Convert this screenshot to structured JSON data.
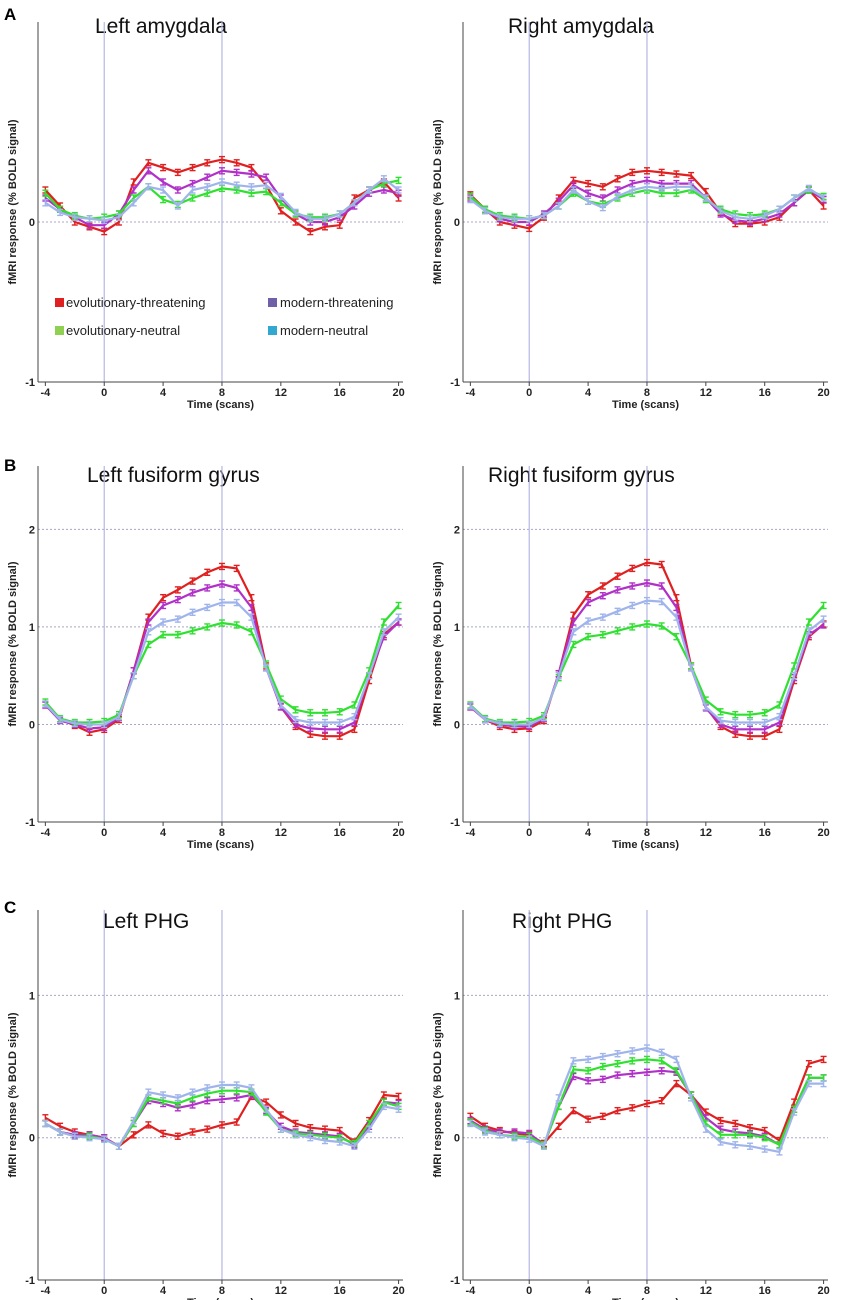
{
  "figure": {
    "rows": [
      {
        "letter": "A"
      },
      {
        "letter": "B"
      },
      {
        "letter": "C"
      }
    ]
  },
  "legend": {
    "items": [
      {
        "name": "evolutionary-threatening",
        "color": "#e02020"
      },
      {
        "name": "modern-threatening",
        "color": "#7060a8"
      },
      {
        "name": "evolutionary-neutral",
        "color": "#90d050"
      },
      {
        "name": "modern-neutral",
        "color": "#30a8d0"
      }
    ]
  },
  "chart_data": [
    {
      "type": "line",
      "title": "Left amygdala",
      "xlabel": "Time (scans)",
      "ylabel": "fMRI response (% BOLD signal)",
      "xlim": [
        -4.5,
        20.3
      ],
      "ylim": [
        -1,
        1.25
      ],
      "yticks": [
        -1,
        0
      ],
      "xticks": [
        -4,
        0,
        4,
        8,
        12,
        16,
        20
      ],
      "vlines": [
        0,
        8
      ],
      "hgrid": [
        0
      ],
      "x": [
        -4,
        -3,
        -2,
        -1,
        0,
        1,
        2,
        3,
        4,
        5,
        6,
        7,
        8,
        9,
        10,
        11,
        12,
        13,
        14,
        15,
        16,
        17,
        18,
        19,
        20
      ],
      "series": [
        {
          "name": "evolutionary-threatening",
          "color": "#e02020",
          "values": [
            0.2,
            0.1,
            0.0,
            -0.03,
            -0.06,
            0.0,
            0.25,
            0.37,
            0.34,
            0.31,
            0.34,
            0.37,
            0.39,
            0.37,
            0.34,
            0.23,
            0.07,
            0.0,
            -0.06,
            -0.03,
            -0.02,
            0.15,
            0.2,
            0.25,
            0.15
          ]
        },
        {
          "name": "modern-threatening",
          "color": "#b030c8",
          "values": [
            0.15,
            0.08,
            0.03,
            -0.02,
            -0.02,
            0.05,
            0.2,
            0.32,
            0.25,
            0.2,
            0.24,
            0.28,
            0.32,
            0.31,
            0.3,
            0.28,
            0.15,
            0.05,
            0.0,
            0.0,
            0.03,
            0.1,
            0.18,
            0.2,
            0.18
          ]
        },
        {
          "name": "evolutionary-neutral",
          "color": "#30e030",
          "values": [
            0.18,
            0.08,
            0.04,
            0.02,
            0.03,
            0.05,
            0.15,
            0.22,
            0.14,
            0.11,
            0.15,
            0.18,
            0.21,
            0.2,
            0.18,
            0.19,
            0.12,
            0.05,
            0.03,
            0.03,
            0.05,
            0.12,
            0.2,
            0.24,
            0.26
          ]
        },
        {
          "name": "modern-neutral",
          "color": "#a0b4ec",
          "values": [
            0.12,
            0.06,
            0.03,
            0.02,
            0.01,
            0.03,
            0.12,
            0.22,
            0.2,
            0.1,
            0.2,
            0.22,
            0.25,
            0.23,
            0.22,
            0.23,
            0.16,
            0.06,
            0.02,
            0.02,
            0.05,
            0.12,
            0.2,
            0.27,
            0.2
          ]
        }
      ]
    },
    {
      "type": "line",
      "title": "Right amygdala",
      "xlabel": "Time (scans)",
      "ylabel": "fMRI response (% BOLD signal)",
      "xlim": [
        -4.5,
        20.3
      ],
      "ylim": [
        -1,
        1.25
      ],
      "yticks": [
        -1,
        0
      ],
      "xticks": [
        -4,
        0,
        4,
        8,
        12,
        16,
        20
      ],
      "vlines": [
        0,
        8
      ],
      "hgrid": [
        0
      ],
      "x": [
        -4,
        -3,
        -2,
        -1,
        0,
        1,
        2,
        3,
        4,
        5,
        6,
        7,
        8,
        9,
        10,
        11,
        12,
        13,
        14,
        15,
        16,
        17,
        18,
        19,
        20
      ],
      "series": [
        {
          "name": "evolutionary-threatening",
          "color": "#e02020",
          "values": [
            0.17,
            0.08,
            0.0,
            -0.02,
            -0.04,
            0.03,
            0.15,
            0.26,
            0.24,
            0.22,
            0.27,
            0.31,
            0.32,
            0.31,
            0.3,
            0.29,
            0.19,
            0.06,
            -0.01,
            -0.01,
            0.0,
            0.03,
            0.12,
            0.2,
            0.1
          ]
        },
        {
          "name": "modern-threatening",
          "color": "#b030c8",
          "values": [
            0.15,
            0.07,
            0.02,
            0.0,
            0.0,
            0.05,
            0.13,
            0.23,
            0.18,
            0.15,
            0.2,
            0.24,
            0.26,
            0.24,
            0.24,
            0.24,
            0.15,
            0.05,
            0.01,
            0.0,
            0.02,
            0.05,
            0.12,
            0.2,
            0.14
          ]
        },
        {
          "name": "evolutionary-neutral",
          "color": "#30e030",
          "values": [
            0.16,
            0.08,
            0.04,
            0.03,
            0.02,
            0.04,
            0.1,
            0.18,
            0.13,
            0.11,
            0.15,
            0.18,
            0.2,
            0.18,
            0.18,
            0.2,
            0.14,
            0.08,
            0.05,
            0.04,
            0.05,
            0.08,
            0.15,
            0.2,
            0.16
          ]
        },
        {
          "name": "modern-neutral",
          "color": "#a0b4ec",
          "values": [
            0.14,
            0.07,
            0.03,
            0.02,
            0.02,
            0.04,
            0.1,
            0.2,
            0.13,
            0.09,
            0.16,
            0.2,
            0.22,
            0.21,
            0.22,
            0.22,
            0.15,
            0.07,
            0.03,
            0.02,
            0.04,
            0.08,
            0.15,
            0.21,
            0.15
          ]
        }
      ]
    },
    {
      "type": "line",
      "title": "Left fusiform gyrus",
      "xlabel": "Time (scans)",
      "ylabel": "fMRI response (% BOLD signal)",
      "xlim": [
        -4.5,
        20.3
      ],
      "ylim": [
        -1,
        2.65
      ],
      "yticks": [
        -1,
        0,
        1,
        2
      ],
      "xticks": [
        -4,
        0,
        4,
        8,
        12,
        16,
        20
      ],
      "vlines": [
        0,
        8
      ],
      "hgrid": [
        0,
        1,
        2
      ],
      "x": [
        -4,
        -3,
        -2,
        -1,
        0,
        1,
        2,
        3,
        4,
        5,
        6,
        7,
        8,
        9,
        10,
        11,
        12,
        13,
        14,
        15,
        16,
        17,
        18,
        19,
        20
      ],
      "series": [
        {
          "name": "evolutionary-threatening",
          "color": "#e02020",
          "values": [
            0.2,
            0.05,
            -0.01,
            -0.08,
            -0.05,
            0.05,
            0.55,
            1.1,
            1.3,
            1.38,
            1.47,
            1.56,
            1.62,
            1.6,
            1.3,
            0.6,
            0.18,
            -0.02,
            -0.1,
            -0.12,
            -0.12,
            -0.05,
            0.45,
            0.92,
            1.05
          ]
        },
        {
          "name": "modern-threatening",
          "color": "#b030c8",
          "values": [
            0.2,
            0.04,
            0.0,
            -0.04,
            -0.03,
            0.07,
            0.55,
            1.05,
            1.22,
            1.28,
            1.35,
            1.4,
            1.44,
            1.4,
            1.2,
            0.58,
            0.18,
            0.0,
            -0.04,
            -0.05,
            -0.05,
            0.02,
            0.5,
            0.9,
            1.05
          ]
        },
        {
          "name": "evolutionary-neutral",
          "color": "#30e030",
          "values": [
            0.23,
            0.06,
            0.02,
            0.02,
            0.03,
            0.1,
            0.5,
            0.82,
            0.92,
            0.92,
            0.96,
            1.0,
            1.04,
            1.02,
            0.95,
            0.62,
            0.26,
            0.15,
            0.12,
            0.12,
            0.13,
            0.2,
            0.55,
            1.05,
            1.22
          ]
        },
        {
          "name": "modern-neutral",
          "color": "#a0b4ec",
          "values": [
            0.21,
            0.05,
            0.01,
            0.0,
            0.0,
            0.08,
            0.5,
            0.95,
            1.05,
            1.08,
            1.15,
            1.2,
            1.25,
            1.25,
            1.1,
            0.58,
            0.2,
            0.05,
            0.02,
            0.02,
            0.02,
            0.08,
            0.5,
            0.95,
            1.1
          ]
        }
      ]
    },
    {
      "type": "line",
      "title": "Right fusiform gyrus",
      "xlabel": "Time (scans)",
      "ylabel": "fMRI response (% BOLD signal)",
      "xlim": [
        -4.5,
        20.3
      ],
      "ylim": [
        -1,
        2.65
      ],
      "yticks": [
        -1,
        0,
        1,
        2
      ],
      "xticks": [
        -4,
        0,
        4,
        8,
        12,
        16,
        20
      ],
      "vlines": [
        0,
        8
      ],
      "hgrid": [
        0,
        1,
        2
      ],
      "x": [
        -4,
        -3,
        -2,
        -1,
        0,
        1,
        2,
        3,
        4,
        5,
        6,
        7,
        8,
        9,
        10,
        11,
        12,
        13,
        14,
        15,
        16,
        17,
        18,
        19,
        20
      ],
      "series": [
        {
          "name": "evolutionary-threatening",
          "color": "#e02020",
          "values": [
            0.18,
            0.05,
            -0.02,
            -0.05,
            -0.04,
            0.04,
            0.52,
            1.12,
            1.33,
            1.42,
            1.52,
            1.6,
            1.66,
            1.64,
            1.3,
            0.6,
            0.18,
            -0.02,
            -0.1,
            -0.12,
            -0.12,
            -0.05,
            0.45,
            0.9,
            1.03
          ]
        },
        {
          "name": "modern-threatening",
          "color": "#b030c8",
          "values": [
            0.18,
            0.05,
            0.0,
            -0.02,
            -0.02,
            0.06,
            0.52,
            1.05,
            1.25,
            1.32,
            1.38,
            1.42,
            1.45,
            1.42,
            1.2,
            0.58,
            0.17,
            0.0,
            -0.05,
            -0.05,
            -0.05,
            0.02,
            0.48,
            0.92,
            1.02
          ]
        },
        {
          "name": "evolutionary-neutral",
          "color": "#30e030",
          "values": [
            0.2,
            0.06,
            0.02,
            0.02,
            0.03,
            0.09,
            0.48,
            0.82,
            0.9,
            0.92,
            0.96,
            1.0,
            1.03,
            1.01,
            0.9,
            0.6,
            0.25,
            0.13,
            0.1,
            0.1,
            0.12,
            0.2,
            0.6,
            1.05,
            1.22
          ]
        },
        {
          "name": "modern-neutral",
          "color": "#a0b4ec",
          "values": [
            0.19,
            0.05,
            0.01,
            0.0,
            0.0,
            0.07,
            0.5,
            0.95,
            1.06,
            1.1,
            1.16,
            1.22,
            1.27,
            1.26,
            1.1,
            0.58,
            0.18,
            0.04,
            0.02,
            0.02,
            0.02,
            0.08,
            0.5,
            0.96,
            1.08
          ]
        }
      ]
    },
    {
      "type": "line",
      "title": "Left PHG",
      "xlabel": "Time (scans)",
      "ylabel": "fMRI response (% BOLD signal)",
      "xlim": [
        -4.5,
        20.3
      ],
      "ylim": [
        -1,
        1.6
      ],
      "yticks": [
        -1,
        0,
        1
      ],
      "xticks": [
        -4,
        0,
        4,
        8,
        12,
        16,
        20
      ],
      "vlines": [
        0,
        8
      ],
      "hgrid": [
        0,
        1
      ],
      "x": [
        -4,
        -3,
        -2,
        -1,
        0,
        1,
        2,
        3,
        4,
        5,
        6,
        7,
        8,
        9,
        10,
        11,
        12,
        13,
        14,
        15,
        16,
        17,
        18,
        19,
        20
      ],
      "series": [
        {
          "name": "evolutionary-threatening",
          "color": "#e02020",
          "values": [
            0.14,
            0.08,
            0.04,
            0.02,
            0.0,
            -0.06,
            0.02,
            0.09,
            0.03,
            0.01,
            0.04,
            0.06,
            0.09,
            0.11,
            0.29,
            0.25,
            0.16,
            0.1,
            0.07,
            0.06,
            0.05,
            -0.03,
            0.12,
            0.3,
            0.29
          ]
        },
        {
          "name": "modern-threatening",
          "color": "#b030c8",
          "values": [
            0.1,
            0.04,
            0.02,
            0.02,
            0.0,
            -0.06,
            0.1,
            0.26,
            0.24,
            0.21,
            0.23,
            0.26,
            0.27,
            0.28,
            0.3,
            0.19,
            0.08,
            0.04,
            0.03,
            0.02,
            0.01,
            -0.05,
            0.08,
            0.25,
            0.24
          ]
        },
        {
          "name": "evolutionary-neutral",
          "color": "#30e030",
          "values": [
            0.1,
            0.04,
            0.01,
            0.01,
            -0.01,
            -0.06,
            0.1,
            0.28,
            0.26,
            0.24,
            0.28,
            0.31,
            0.33,
            0.33,
            0.32,
            0.18,
            0.06,
            0.03,
            0.02,
            0.01,
            0.0,
            -0.04,
            0.1,
            0.25,
            0.22
          ]
        },
        {
          "name": "modern-neutral",
          "color": "#a0b4ec",
          "values": [
            0.1,
            0.04,
            0.01,
            0.0,
            -0.01,
            -0.06,
            0.12,
            0.32,
            0.3,
            0.28,
            0.32,
            0.35,
            0.37,
            0.37,
            0.35,
            0.2,
            0.06,
            0.02,
            0.0,
            -0.02,
            -0.03,
            -0.06,
            0.06,
            0.22,
            0.2
          ]
        }
      ]
    },
    {
      "type": "line",
      "title": "Right PHG",
      "xlabel": "Time (scans)",
      "ylabel": "fMRI response (% BOLD signal)",
      "xlim": [
        -4.5,
        20.3
      ],
      "ylim": [
        -1,
        1.6
      ],
      "yticks": [
        -1,
        0,
        1
      ],
      "xticks": [
        -4,
        0,
        4,
        8,
        12,
        16,
        20
      ],
      "vlines": [
        0,
        8
      ],
      "hgrid": [
        0,
        1
      ],
      "x": [
        -4,
        -3,
        -2,
        -1,
        0,
        1,
        2,
        3,
        4,
        5,
        6,
        7,
        8,
        9,
        10,
        11,
        12,
        13,
        14,
        15,
        16,
        17,
        18,
        19,
        20
      ],
      "series": [
        {
          "name": "evolutionary-threatening",
          "color": "#e02020",
          "values": [
            0.15,
            0.08,
            0.05,
            0.03,
            0.02,
            -0.04,
            0.08,
            0.19,
            0.13,
            0.15,
            0.19,
            0.21,
            0.24,
            0.26,
            0.38,
            0.3,
            0.18,
            0.12,
            0.1,
            0.07,
            0.05,
            -0.02,
            0.25,
            0.52,
            0.55
          ]
        },
        {
          "name": "modern-threatening",
          "color": "#b030c8",
          "values": [
            0.12,
            0.06,
            0.04,
            0.04,
            0.03,
            -0.05,
            0.22,
            0.43,
            0.4,
            0.41,
            0.44,
            0.45,
            0.46,
            0.47,
            0.46,
            0.3,
            0.14,
            0.06,
            0.04,
            0.03,
            0.01,
            -0.05,
            0.2,
            0.42,
            0.42
          ]
        },
        {
          "name": "evolutionary-neutral",
          "color": "#30e030",
          "values": [
            0.11,
            0.05,
            0.02,
            0.01,
            0.01,
            -0.05,
            0.22,
            0.48,
            0.47,
            0.5,
            0.52,
            0.54,
            0.55,
            0.54,
            0.47,
            0.3,
            0.1,
            0.02,
            0.02,
            0.02,
            0.0,
            -0.05,
            0.2,
            0.42,
            0.42
          ]
        },
        {
          "name": "modern-neutral",
          "color": "#a0b4ec",
          "values": [
            0.1,
            0.04,
            0.02,
            0.0,
            -0.01,
            -0.06,
            0.28,
            0.54,
            0.55,
            0.57,
            0.59,
            0.61,
            0.63,
            0.6,
            0.55,
            0.28,
            0.06,
            -0.03,
            -0.05,
            -0.06,
            -0.08,
            -0.1,
            0.18,
            0.38,
            0.38
          ]
        }
      ]
    }
  ]
}
